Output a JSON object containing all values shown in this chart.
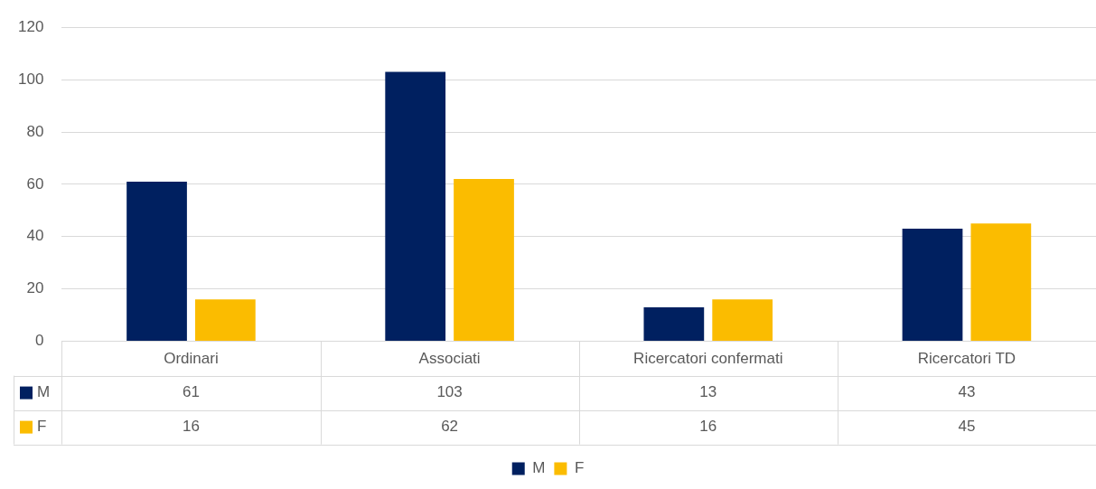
{
  "chart_data": {
    "type": "bar",
    "categories": [
      "Ordinari",
      "Associati",
      "Ricercatori confermati",
      "Ricercatori TD"
    ],
    "series": [
      {
        "name": "M",
        "color": "#002060",
        "values": [
          61,
          103,
          13,
          43
        ]
      },
      {
        "name": "F",
        "color": "#fbbc00",
        "values": [
          16,
          62,
          16,
          45
        ]
      }
    ],
    "ylim": [
      0,
      120
    ],
    "yticks": [
      0,
      20,
      40,
      60,
      80,
      100,
      120
    ],
    "grid": "y",
    "legend": "bottom",
    "data_labels": true
  }
}
